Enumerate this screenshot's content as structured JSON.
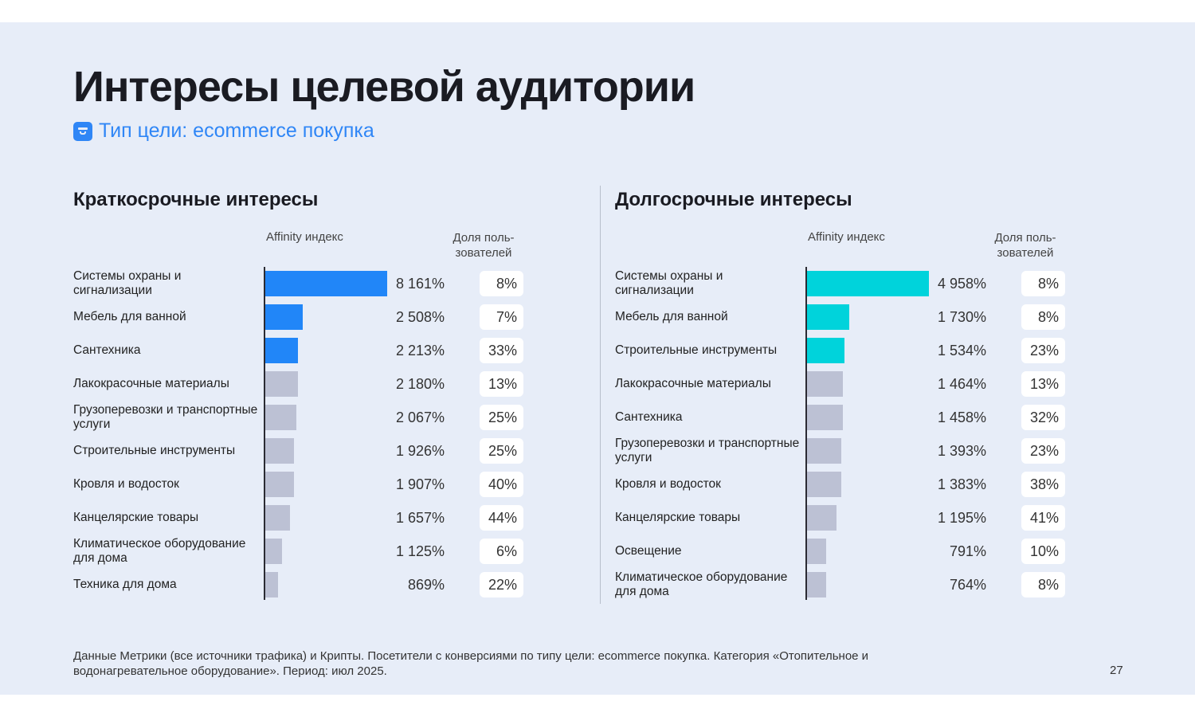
{
  "title": "Интересы целевой аудитории",
  "subtitle": "Тип цели: ecommerce покупка",
  "icons": {
    "goal": "goal-basket-icon"
  },
  "colors": {
    "background": "#e7edf8",
    "short_highlight": "#2186f8",
    "long_highlight": "#00d3db",
    "neutral_bar": "#bcc1d4",
    "subtitle": "#2f86f6"
  },
  "columns": {
    "affinity": "Affinity индекс",
    "share": "Доля поль-зователей"
  },
  "footnote": "Данные Метрики (все источники трафика) и Крипты. Посетители с конверсиями по типу цели: ecommerce покупка. Категория «Отопительное и водонагревательное оборудование». Период: июл 2025.",
  "page_number": "27",
  "chart_data": [
    {
      "type": "bar",
      "orientation": "horizontal",
      "title": "Краткосрочные интересы",
      "categories": [
        "Системы охраны и сигнализации",
        "Мебель для ванной",
        "Сантехника",
        "Лакокрасочные материалы",
        "Грузоперевозки и транспортные услуги",
        "Строительные инструменты",
        "Кровля и водосток",
        "Канцелярские товары",
        "Климатическое оборудование для дома",
        "Техника для дома"
      ],
      "values": [
        8161,
        2508,
        2213,
        2180,
        2067,
        1926,
        1907,
        1657,
        1125,
        869
      ],
      "value_labels": [
        "8 161%",
        "2 508%",
        "2 213%",
        "2 180%",
        "2 067%",
        "1 926%",
        "1 907%",
        "1 657%",
        "1 125%",
        "869%"
      ],
      "shares": [
        "8%",
        "7%",
        "33%",
        "13%",
        "25%",
        "25%",
        "40%",
        "44%",
        "6%",
        "22%"
      ],
      "highlight_count": 3,
      "max": 8161
    },
    {
      "type": "bar",
      "orientation": "horizontal",
      "title": "Долгосрочные интересы",
      "categories": [
        "Системы охраны и сигнализации",
        "Мебель для ванной",
        "Строительные инструменты",
        "Лакокрасочные материалы",
        "Сантехника",
        "Грузоперевозки и транспортные услуги",
        "Кровля и водосток",
        "Канцелярские товары",
        "Освещение",
        "Климатическое оборудование для дома"
      ],
      "values": [
        4958,
        1730,
        1534,
        1464,
        1458,
        1393,
        1383,
        1195,
        791,
        764
      ],
      "value_labels": [
        "4 958%",
        "1 730%",
        "1 534%",
        "1 464%",
        "1 458%",
        "1 393%",
        "1 383%",
        "1 195%",
        "791%",
        "764%"
      ],
      "shares": [
        "8%",
        "8%",
        "23%",
        "13%",
        "32%",
        "23%",
        "38%",
        "41%",
        "10%",
        "8%"
      ],
      "highlight_count": 3,
      "max": 4958
    }
  ]
}
